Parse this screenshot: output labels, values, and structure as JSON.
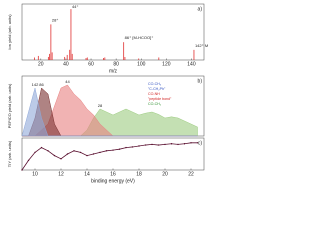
{
  "chart_data": [
    {
      "type": "stem",
      "panel": "a)",
      "ylabel": "Ion yield (arb. units)",
      "xlabel": "m/z",
      "x": [
        15,
        18,
        26,
        27,
        28,
        29,
        39,
        41,
        43,
        44,
        45,
        56,
        57,
        70,
        71,
        86,
        87,
        98,
        114,
        142
      ],
      "values": [
        0.05,
        0.08,
        0.06,
        0.12,
        0.7,
        0.15,
        0.06,
        0.1,
        0.2,
        1.0,
        0.12,
        0.04,
        0.05,
        0.04,
        0.05,
        0.35,
        0.06,
        0.03,
        0.05,
        0.2
      ],
      "color": "#e03030",
      "xlim": [
        5,
        150
      ],
      "ylim": [
        0,
        1.1
      ],
      "xticks": [
        20,
        40,
        60,
        80,
        100,
        120,
        140
      ],
      "annotations": [
        {
          "text": "28⁺",
          "x": 28
        },
        {
          "text": "44⁺",
          "x": 44
        },
        {
          "text": "86⁺ [M-HCOO]⁺",
          "x": 86
        },
        {
          "text": "142⁺ M⁺",
          "x": 142
        }
      ]
    },
    {
      "type": "area",
      "panel": "b)",
      "ylabel": "PEPICO yield (arb. units)",
      "x": [
        9,
        9.5,
        10,
        10.5,
        11,
        11.5,
        12,
        12.5,
        13,
        13.5,
        14,
        14.5,
        15,
        15.5,
        16,
        16.5,
        17,
        17.5,
        18,
        18.5,
        19,
        19.5,
        20,
        20.5,
        21,
        21.5,
        22,
        22.5
      ],
      "xlim": [
        9,
        23
      ],
      "ylim": [
        0,
        1
      ],
      "series": [
        {
          "name": "28",
          "color": "#9ccc80",
          "values": [
            0,
            0,
            0,
            0,
            0,
            0,
            0,
            0,
            0,
            0,
            0.1,
            0.3,
            0.45,
            0.4,
            0.35,
            0.4,
            0.45,
            0.4,
            0.35,
            0.38,
            0.4,
            0.36,
            0.3,
            0.32,
            0.3,
            0.25,
            0.2,
            0.15
          ]
        },
        {
          "name": "44",
          "color": "#e88080",
          "values": [
            0,
            0,
            0,
            0.1,
            0.2,
            0.5,
            0.8,
            0.85,
            0.7,
            0.6,
            0.45,
            0.35,
            0.2,
            0.1,
            0,
            0,
            0,
            0,
            0,
            0,
            0,
            0,
            0,
            0,
            0,
            0,
            0,
            0
          ]
        },
        {
          "name": "86",
          "color": "#7a3030",
          "values": [
            0,
            0,
            0.3,
            0.8,
            0.7,
            0.2,
            0,
            0,
            0,
            0,
            0,
            0,
            0,
            0,
            0,
            0,
            0,
            0,
            0,
            0,
            0,
            0,
            0,
            0,
            0,
            0,
            0,
            0
          ]
        },
        {
          "name": "142",
          "color": "#8fa8d8",
          "values": [
            0,
            0.4,
            0.8,
            0.3,
            0,
            0,
            0,
            0,
            0,
            0,
            0,
            0,
            0,
            0,
            0,
            0,
            0,
            0,
            0,
            0,
            0,
            0,
            0,
            0,
            0,
            0,
            0,
            0
          ]
        }
      ],
      "notes": [
        {
          "text": "CO-CH₃",
          "color": "#3050c0"
        },
        {
          "text": "\"C-CH₂Ph\"",
          "color": "#3050c0"
        },
        {
          "text": "CO-NH",
          "color": "#d02020"
        },
        {
          "text": "\"peptide bond\"",
          "color": "#d02020"
        },
        {
          "text": "CO-CH₂",
          "color": "#309030"
        }
      ]
    },
    {
      "type": "line",
      "panel": "c)",
      "ylabel": "TIY (arb. units)",
      "xlabel": "binding energy (eV)",
      "x": [
        9,
        9.5,
        10,
        10.5,
        11,
        11.5,
        12,
        12.5,
        13,
        13.5,
        14,
        14.5,
        15,
        15.5,
        16,
        16.5,
        17,
        17.5,
        18,
        18.5,
        19,
        19.5,
        20,
        20.5,
        21,
        21.5,
        22,
        22.5
      ],
      "values": [
        0,
        0.3,
        0.55,
        0.7,
        0.6,
        0.45,
        0.35,
        0.5,
        0.6,
        0.55,
        0.45,
        0.5,
        0.55,
        0.6,
        0.62,
        0.65,
        0.7,
        0.72,
        0.75,
        0.78,
        0.8,
        0.78,
        0.8,
        0.82,
        0.8,
        0.82,
        0.85,
        0.85
      ],
      "color": "#5a1030",
      "xlim": [
        9,
        23
      ],
      "ylim": [
        0,
        1
      ],
      "xticks": [
        10,
        12,
        14,
        16,
        18,
        20,
        22
      ]
    }
  ]
}
